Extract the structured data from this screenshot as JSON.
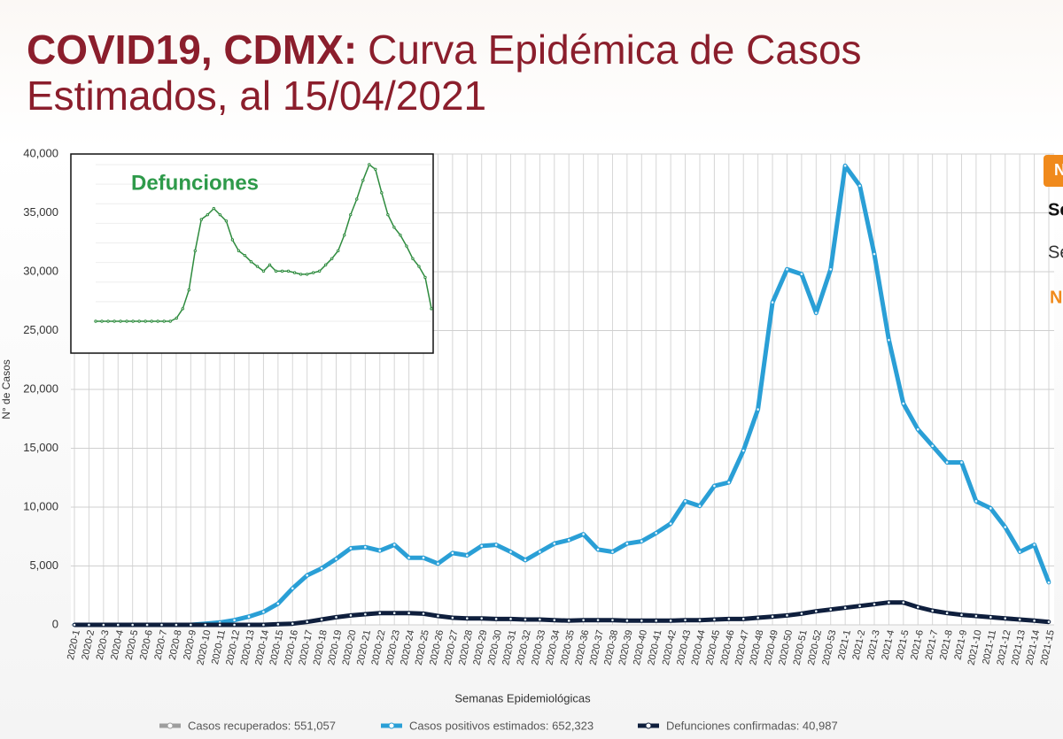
{
  "header": {
    "title_bold": "COVID19, CDMX:",
    "title_rest": "Curva Epidémica de Casos",
    "title_line2": "Estimados, al 15/04/2021"
  },
  "chart_data": [
    {
      "type": "line",
      "y_label": "N° de Casos",
      "x_label": "Semanas Epidemiológicas",
      "categories": [
        "2020-1",
        "2020-2",
        "2020-3",
        "2020-4",
        "2020-5",
        "2020-6",
        "2020-7",
        "2020-8",
        "2020-9",
        "2020-10",
        "2020-11",
        "2020-12",
        "2020-13",
        "2020-14",
        "2020-15",
        "2020-16",
        "2020-17",
        "2020-18",
        "2020-19",
        "2020-20",
        "2020-21",
        "2020-22",
        "2020-23",
        "2020-24",
        "2020-25",
        "2020-26",
        "2020-27",
        "2020-28",
        "2020-29",
        "2020-30",
        "2020-31",
        "2020-32",
        "2020-33",
        "2020-34",
        "2020-35",
        "2020-36",
        "2020-37",
        "2020-38",
        "2020-39",
        "2020-40",
        "2020-41",
        "2020-42",
        "2020-43",
        "2020-44",
        "2020-45",
        "2020-46",
        "2020-47",
        "2020-48",
        "2020-49",
        "2020-50",
        "2020-51",
        "2020-52",
        "2020-53",
        "2021-1",
        "2021-2",
        "2021-3",
        "2021-4",
        "2021-5",
        "2021-6",
        "2021-7",
        "2021-8",
        "2021-9",
        "2021-10",
        "2021-11",
        "2021-12",
        "2021-13",
        "2021-14",
        "2021-15"
      ],
      "series": [
        {
          "name": "Casos recuperados: 551,057",
          "color": "#9e9e9e"
        },
        {
          "name": "Casos positivos estimados: 652,323",
          "color": "#2a9fd6",
          "values": [
            0,
            0,
            0,
            0,
            0,
            0,
            0,
            0,
            0,
            100,
            200,
            400,
            700,
            1100,
            1800,
            3100,
            4200,
            4800,
            5600,
            6500,
            6600,
            6300,
            6800,
            5700,
            5700,
            5200,
            6100,
            5900,
            6700,
            6800,
            6200,
            5500,
            6200,
            6900,
            7200,
            7700,
            6400,
            6200,
            6900,
            7100,
            7800,
            8600,
            10500,
            10100,
            11800,
            12100,
            14800,
            18300,
            27400,
            30200,
            29800,
            26500,
            30200,
            39000,
            37300,
            31500,
            24200,
            18800,
            16600,
            15200,
            13800,
            13800,
            10500,
            9900,
            8300,
            6200,
            6800,
            3600
          ]
        },
        {
          "name": "Defunciones confirmadas: 40,987",
          "color": "#0f1f3d",
          "values": [
            0,
            0,
            0,
            0,
            0,
            0,
            0,
            0,
            0,
            0,
            0,
            0,
            0,
            0,
            50,
            100,
            250,
            450,
            650,
            800,
            900,
            1000,
            1000,
            1000,
            950,
            750,
            600,
            550,
            550,
            500,
            500,
            450,
            450,
            400,
            350,
            400,
            400,
            400,
            350,
            350,
            350,
            350,
            400,
            400,
            450,
            500,
            500,
            600,
            700,
            800,
            950,
            1150,
            1300,
            1450,
            1600,
            1750,
            1900,
            1900,
            1500,
            1200,
            1000,
            850,
            750,
            650,
            550,
            450,
            350,
            250
          ]
        }
      ],
      "ylim": [
        0,
        40000
      ],
      "yticks": [
        0,
        {
          "value": 5000,
          "label": "5,000"
        },
        {
          "value": 10000,
          "label": "10,000"
        },
        {
          "value": 15000,
          "label": "15,000"
        },
        {
          "value": 20000,
          "label": "20,000"
        },
        {
          "value": 25000,
          "label": "25,000"
        },
        {
          "value": 30000,
          "label": "30,000"
        },
        {
          "value": 35000,
          "label": "35,000"
        },
        {
          "value": 40000,
          "label": "40,000"
        }
      ],
      "grid": true
    },
    {
      "type": "line",
      "title": "Defunciones",
      "color": "#2e8b3e",
      "values": [
        0,
        0,
        0,
        0,
        0,
        0,
        0,
        0,
        0,
        0,
        0,
        0,
        0,
        2,
        8,
        20,
        45,
        65,
        68,
        72,
        68,
        64,
        52,
        45,
        42,
        38,
        35,
        32,
        36,
        32,
        32,
        32,
        31,
        30,
        30,
        31,
        32,
        36,
        40,
        45,
        55,
        68,
        78,
        90,
        100,
        97,
        82,
        68,
        60,
        55,
        48,
        40,
        35,
        28,
        8
      ],
      "ylim": [
        0,
        100
      ]
    }
  ],
  "side_panel": {
    "badge": "N",
    "lines": [
      "Se",
      "Se",
      "N"
    ]
  }
}
